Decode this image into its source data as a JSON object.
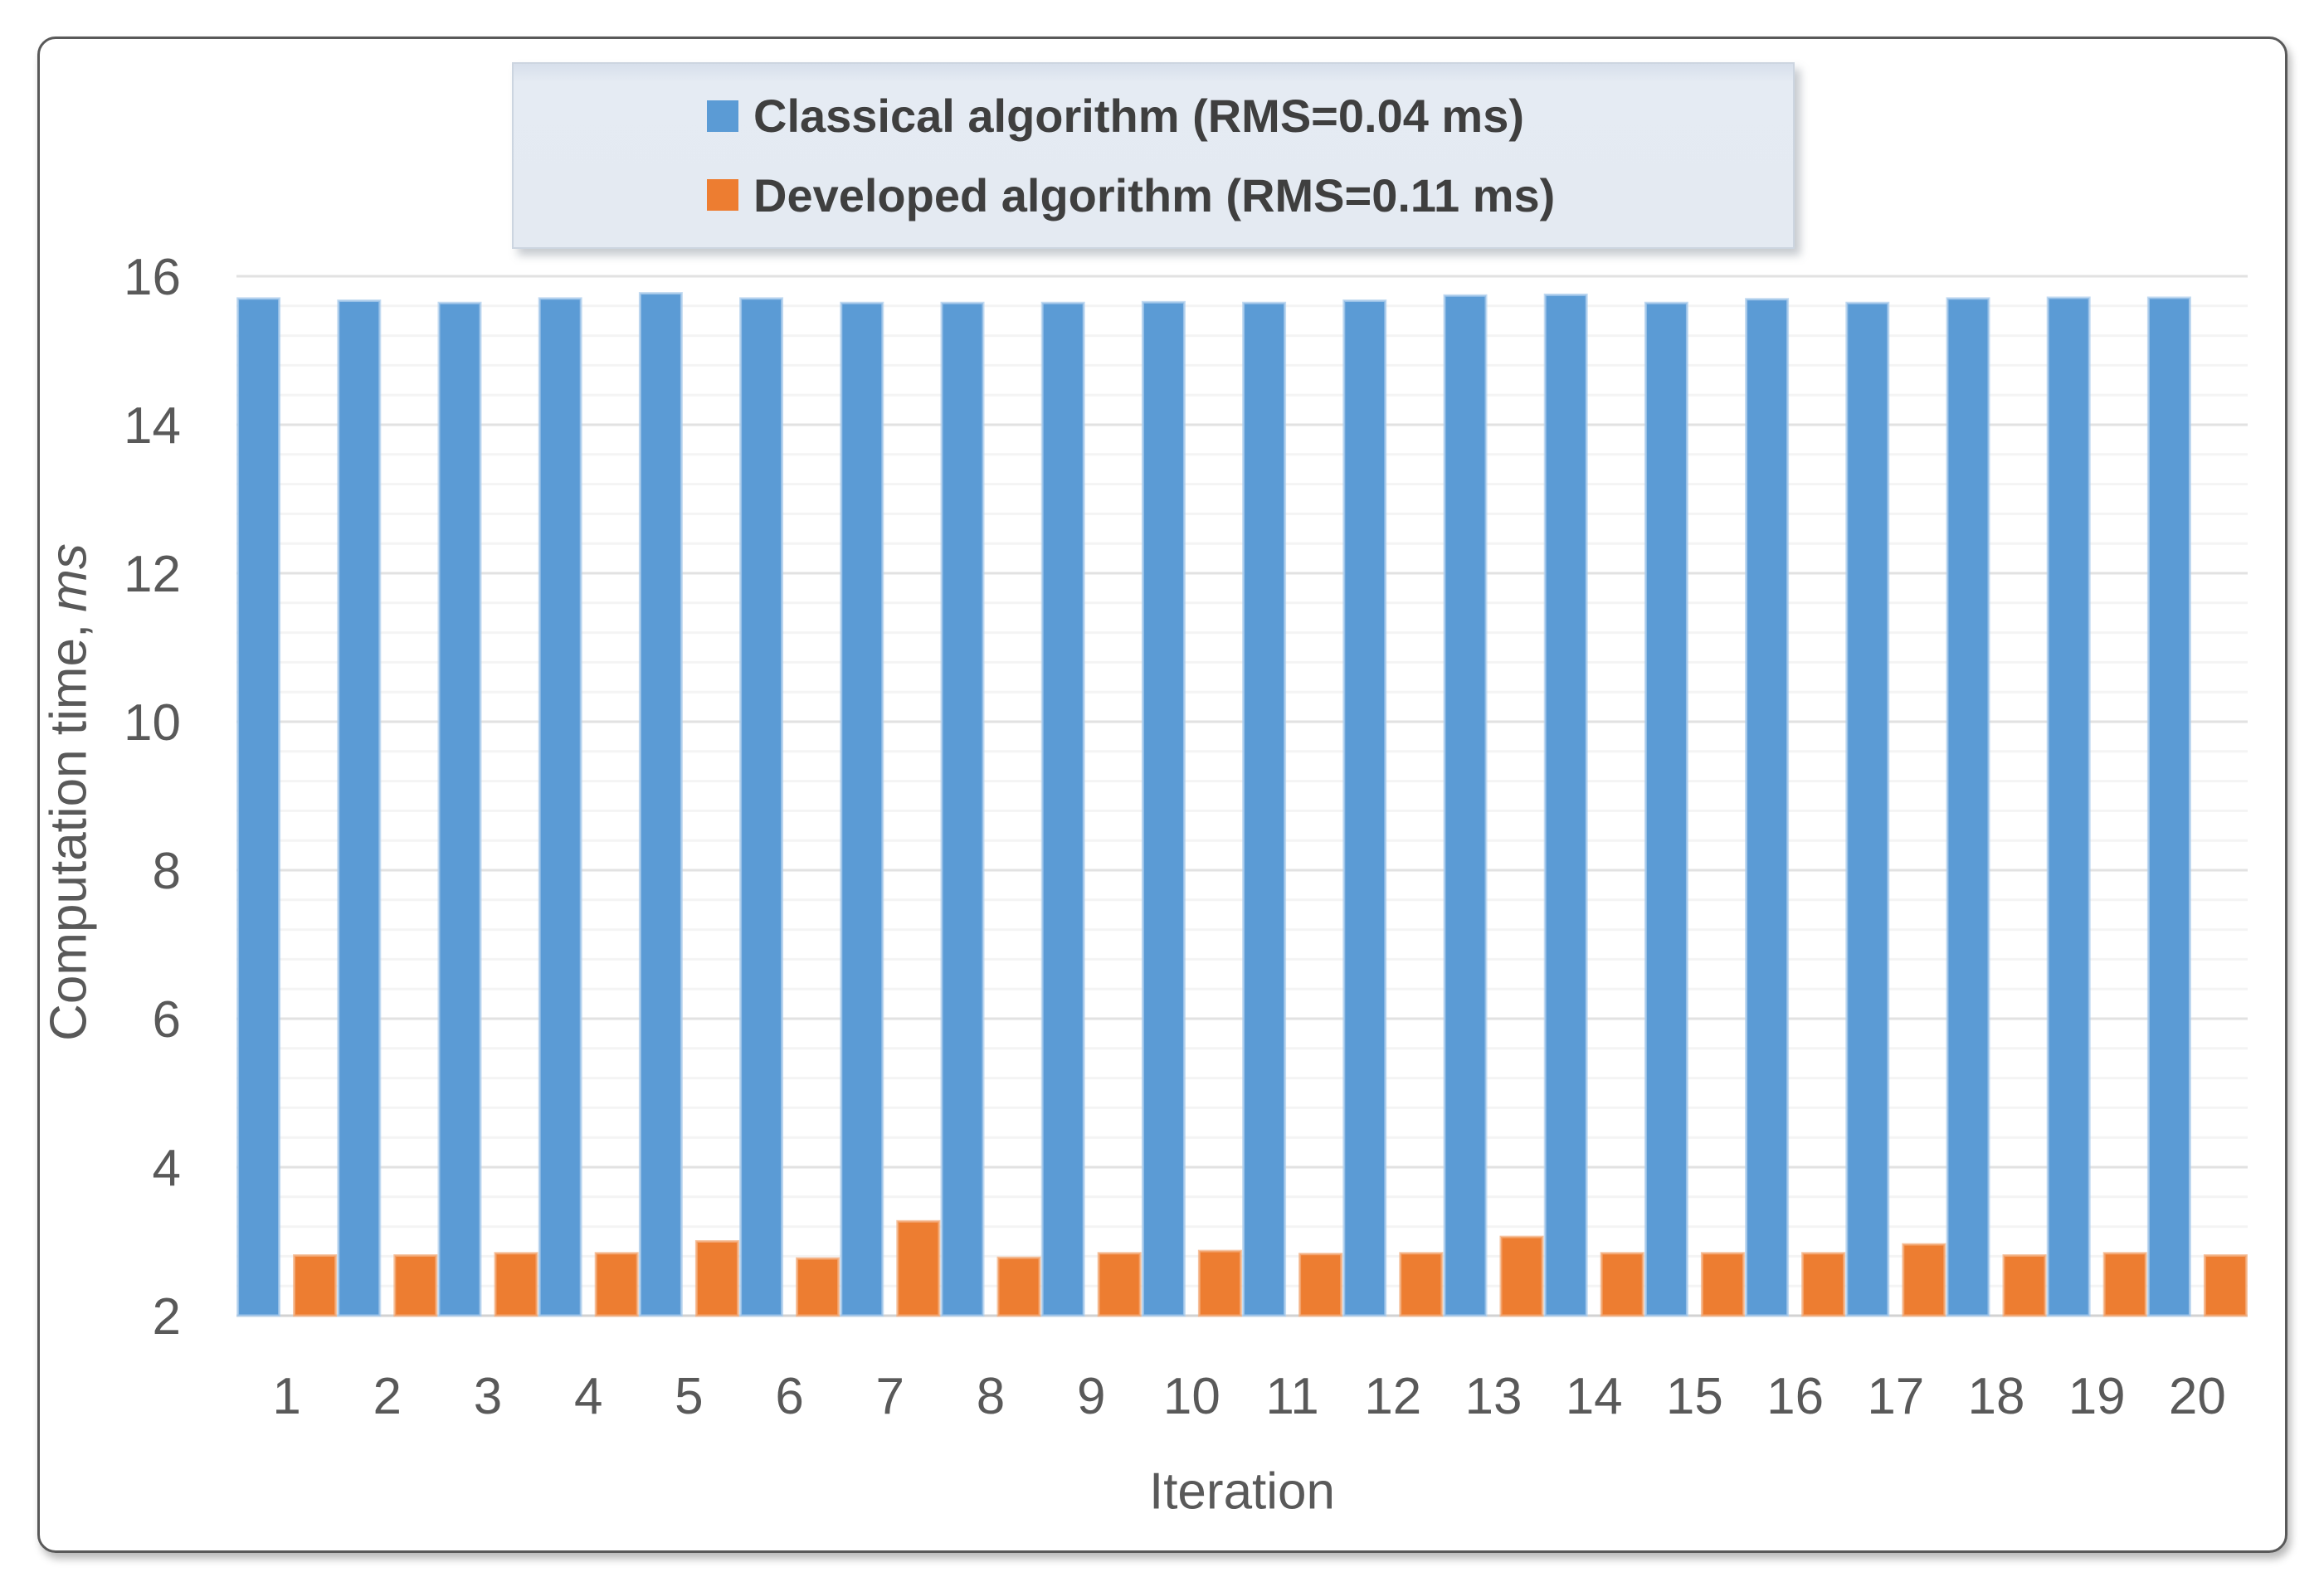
{
  "chart_data": {
    "type": "bar",
    "title": "",
    "xlabel": "Iteration",
    "ylabel": "Computation time, ms",
    "ylabel_regular": "Computation time,",
    "ylabel_italic": "ms",
    "categories": [
      "1",
      "2",
      "3",
      "4",
      "5",
      "6",
      "7",
      "8",
      "9",
      "10",
      "11",
      "12",
      "13",
      "14",
      "15",
      "16",
      "17",
      "18",
      "19",
      "20"
    ],
    "series": [
      {
        "name": "Classical algorithm (RMS=0.04 ms)",
        "color": "#5B9BD5",
        "edge_color": "#AECDEC",
        "values": [
          15.7,
          15.67,
          15.64,
          15.7,
          15.77,
          15.7,
          15.64,
          15.64,
          15.64,
          15.65,
          15.64,
          15.67,
          15.74,
          15.75,
          15.64,
          15.69,
          15.64,
          15.7,
          15.71,
          15.71
        ]
      },
      {
        "name": "Developed algorithm (RMS=0.11 ms)",
        "color": "#ED7D31",
        "edge_color": "#F3AE7D",
        "values": [
          2.81,
          2.81,
          2.84,
          2.84,
          3.0,
          2.77,
          3.27,
          2.78,
          2.84,
          2.87,
          2.83,
          2.84,
          3.06,
          2.84,
          2.84,
          2.84,
          2.96,
          2.81,
          2.84,
          2.81
        ]
      }
    ],
    "ylim": [
      2,
      16
    ],
    "y_major_unit": 2,
    "y_minor_unit": 0.4,
    "y_ticks": [
      "2",
      "4",
      "6",
      "8",
      "10",
      "12",
      "14",
      "16"
    ],
    "grid": "major and minor horizontal gridlines on",
    "legend_position": "top-center"
  },
  "colors": {
    "axis_text": "#595959",
    "legend_text": "#3F3F3F",
    "major_grid": "#E2E2E2",
    "minor_grid": "#F4F4F4",
    "baseline": "#D2D2D2",
    "frame_border": "#595959",
    "legend_bg": "#E4EAF2"
  }
}
